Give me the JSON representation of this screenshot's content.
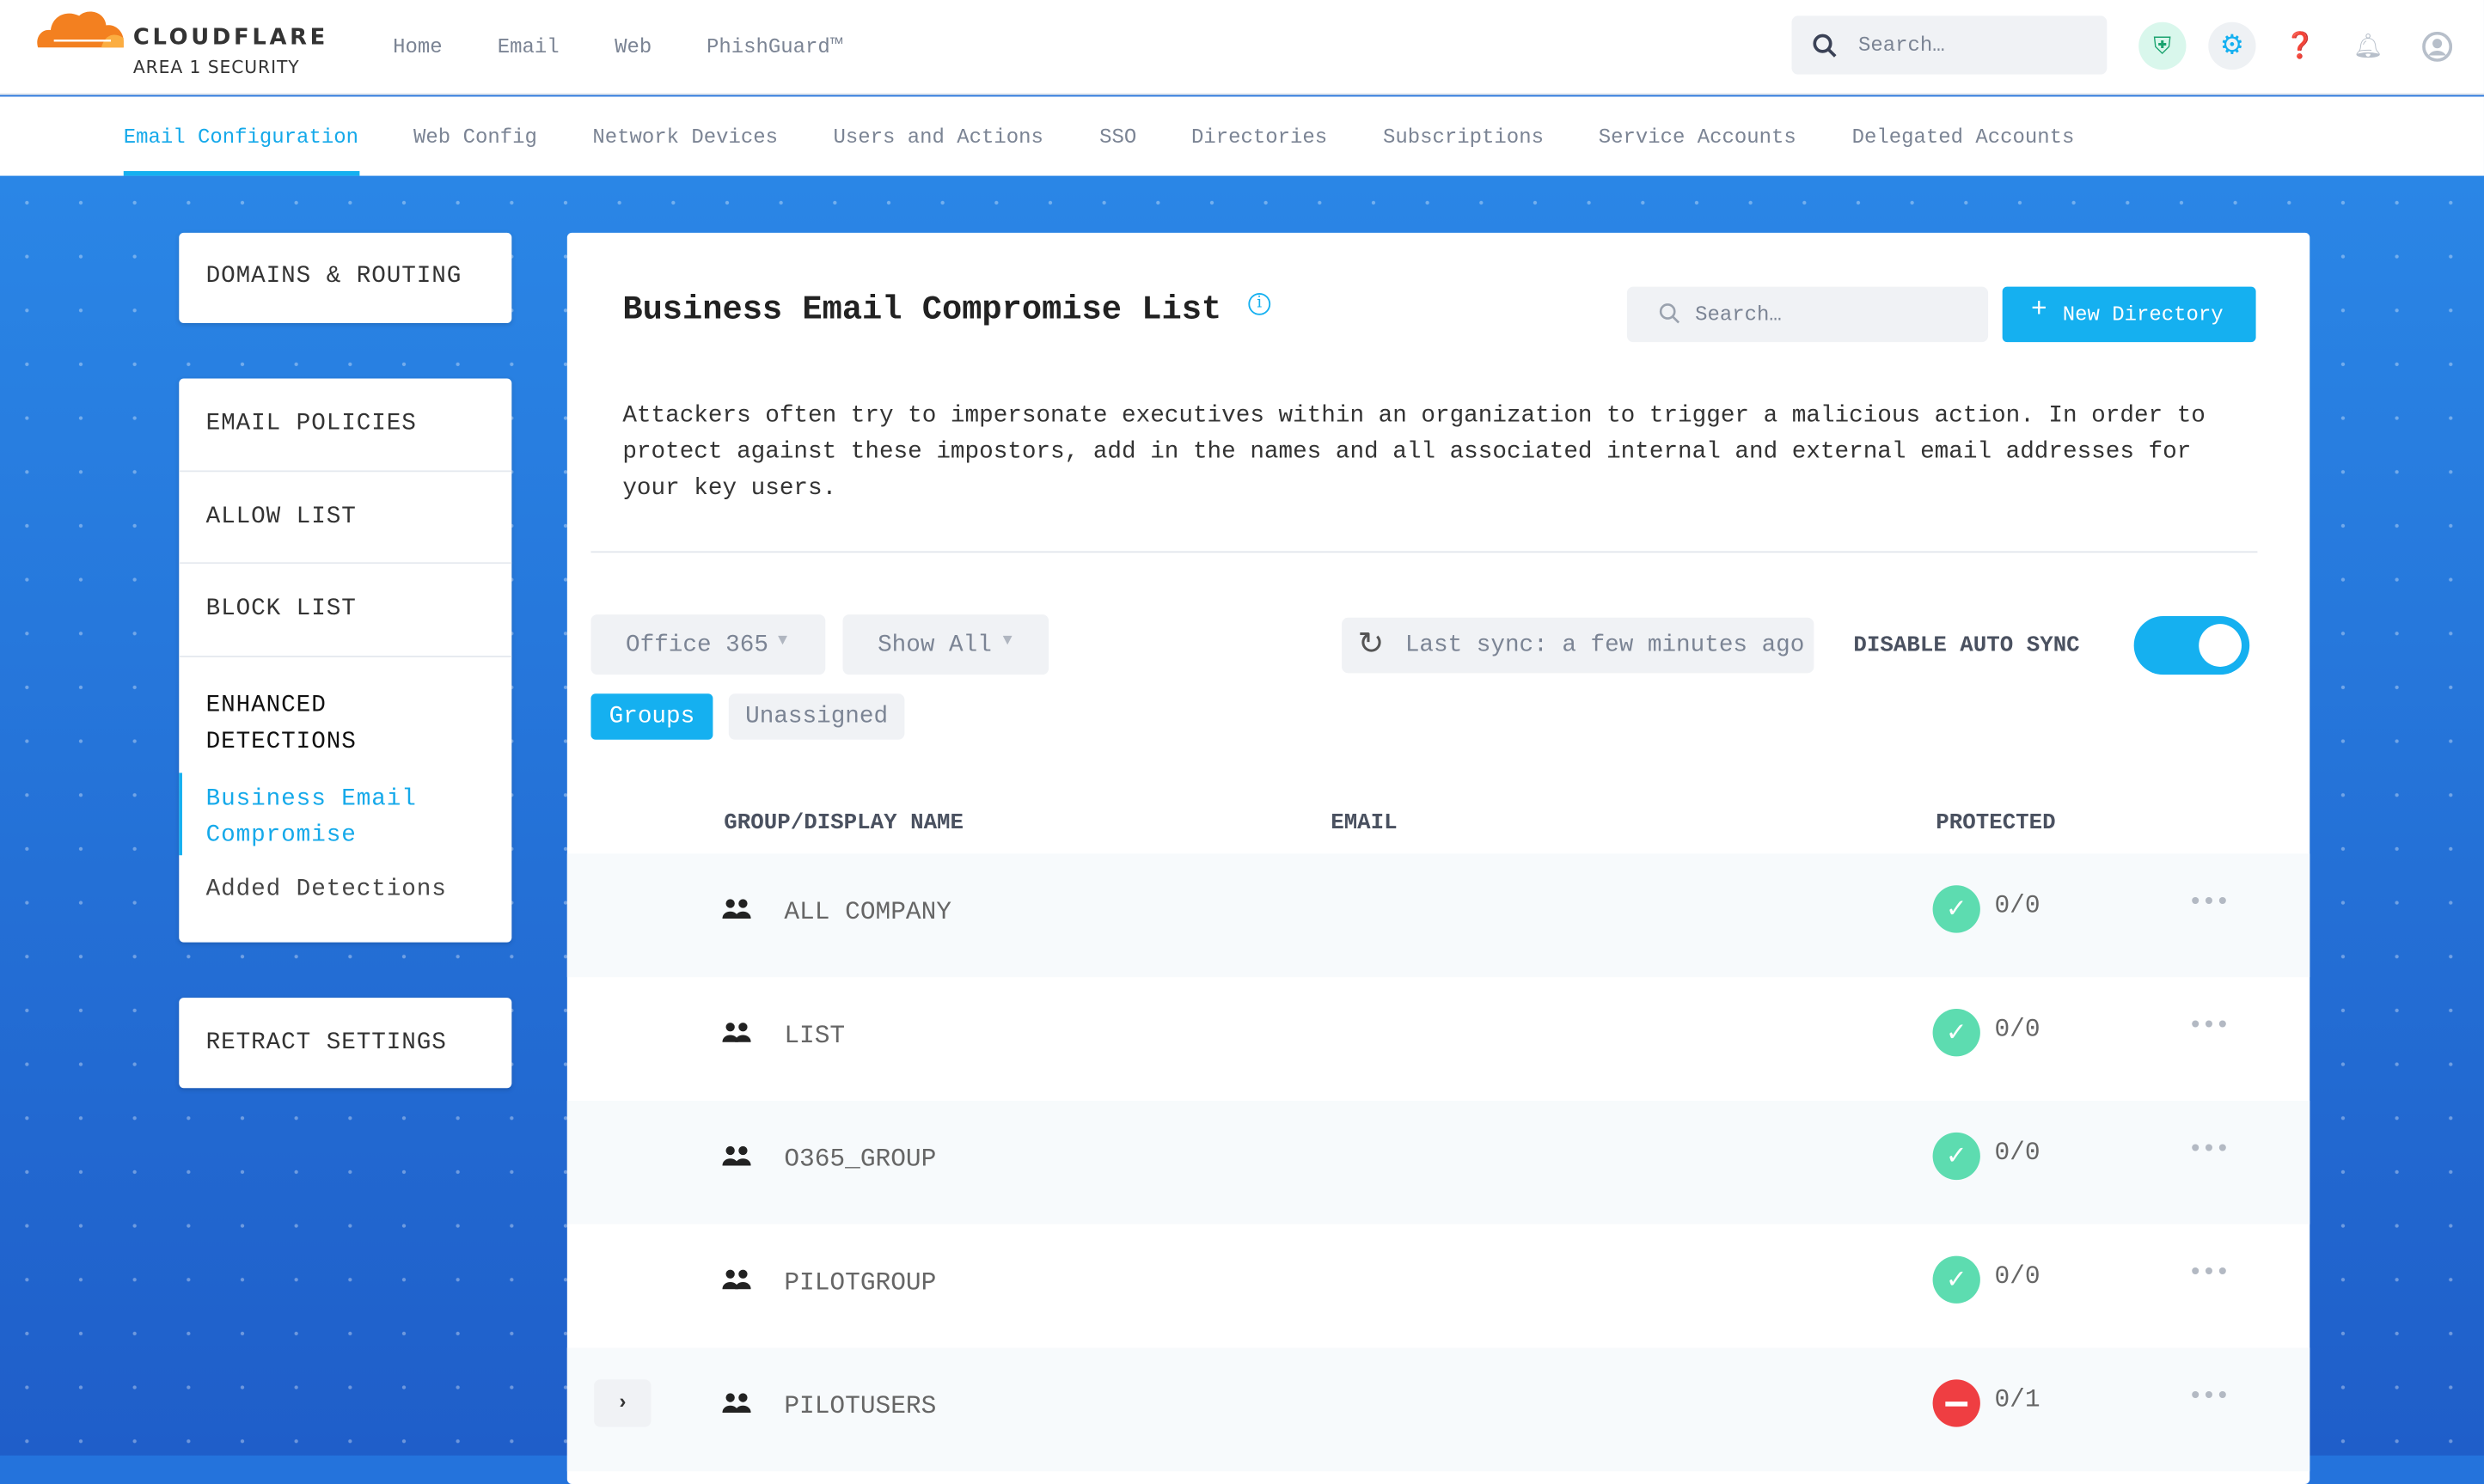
{
  "brand": {
    "name": "CLOUDFLARE",
    "sub": "AREA 1 SECURITY",
    "color": "#f38020"
  },
  "nav": {
    "items": [
      "Home",
      "Email",
      "Web",
      "PhishGuard™"
    ]
  },
  "header": {
    "search_placeholder": "Search…",
    "icons": [
      "shield-check-icon",
      "gear-icon",
      "help-icon",
      "bell-icon",
      "user-icon"
    ]
  },
  "tabs": [
    {
      "label": "Email Configuration",
      "active": true
    },
    {
      "label": "Web Config"
    },
    {
      "label": "Network Devices"
    },
    {
      "label": "Users and Actions"
    },
    {
      "label": "SSO"
    },
    {
      "label": "Directories"
    },
    {
      "label": "Subscriptions"
    },
    {
      "label": "Service Accounts"
    },
    {
      "label": "Delegated Accounts"
    }
  ],
  "sidebar": {
    "domains": "DOMAINS & ROUTING",
    "email_policies": "EMAIL POLICIES",
    "allow": "ALLOW LIST",
    "block": "BLOCK LIST",
    "enhanced": "ENHANCED\nDETECTIONS",
    "bec": "Business Email\nCompromise",
    "added": "Added Detections",
    "retract": "RETRACT SETTINGS"
  },
  "main": {
    "title": "Business Email Compromise List",
    "search_placeholder": "Search…",
    "new_button": "New Directory",
    "description": "Attackers often try to impersonate executives within an organization to trigger a malicious action. In order to protect against these impostors, add in the names and all associated internal and external email addresses for your key users.",
    "source_select": "Office 365",
    "filter_select": "Show All",
    "last_sync": "Last sync: a few minutes ago",
    "auto_sync_label": "DISABLE AUTO SYNC",
    "auto_sync_on": true,
    "view_tabs": [
      "Groups",
      "Unassigned"
    ],
    "columns": [
      "GROUP/DISPLAY NAME",
      "EMAIL",
      "PROTECTED"
    ],
    "rows": [
      {
        "name": "ALL COMPANY",
        "protected": "0/0",
        "status": "ok"
      },
      {
        "name": "LIST",
        "protected": "0/0",
        "status": "ok"
      },
      {
        "name": "O365_GROUP",
        "protected": "0/0",
        "status": "ok"
      },
      {
        "name": "PILOTGROUP",
        "protected": "0/0",
        "status": "ok"
      },
      {
        "name": "PILOTUSERS",
        "protected": "0/1",
        "status": "blocked",
        "expandable": true
      }
    ],
    "colors": {
      "accent": "#15b0f0",
      "ok": "#5ddcb0",
      "blocked": "#ef3e42"
    }
  }
}
